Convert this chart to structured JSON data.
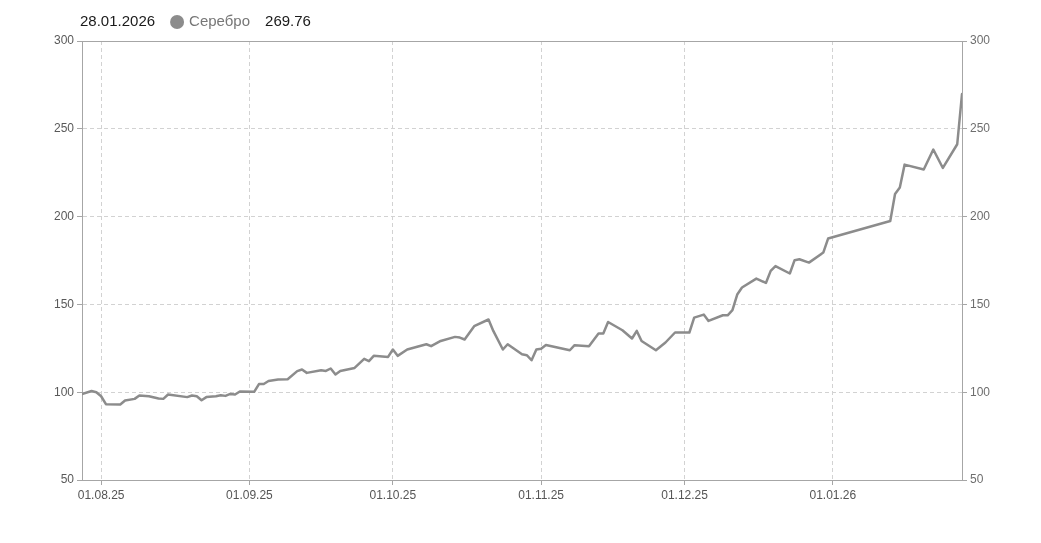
{
  "chart_data": {
    "type": "line",
    "annotations": [
      "28.01.2026",
      "269.76"
    ],
    "legend": "top left",
    "grid": true,
    "line_style": "solid",
    "x": [
      "2025-07-28",
      "2025-07-30",
      "2025-07-31",
      "2025-08-01",
      "2025-08-02",
      "2025-08-05",
      "2025-08-06",
      "2025-08-08",
      "2025-08-09",
      "2025-08-11",
      "2025-08-13",
      "2025-08-14",
      "2025-08-15",
      "2025-08-19",
      "2025-08-20",
      "2025-08-21",
      "2025-08-22",
      "2025-08-23",
      "2025-08-25",
      "2025-08-26",
      "2025-08-27",
      "2025-08-28",
      "2025-08-29",
      "2025-08-30",
      "2025-09-02",
      "2025-09-03",
      "2025-09-04",
      "2025-09-05",
      "2025-09-07",
      "2025-09-09",
      "2025-09-11",
      "2025-09-12",
      "2025-09-13",
      "2025-09-16",
      "2025-09-17",
      "2025-09-18",
      "2025-09-19",
      "2025-09-20",
      "2025-09-23",
      "2025-09-25",
      "2025-09-26",
      "2025-09-27",
      "2025-09-30",
      "2025-10-01",
      "2025-10-02",
      "2025-10-04",
      "2025-10-08",
      "2025-10-09",
      "2025-10-11",
      "2025-10-14",
      "2025-10-15",
      "2025-10-16",
      "2025-10-18",
      "2025-10-21",
      "2025-10-22",
      "2025-10-24",
      "2025-10-25",
      "2025-10-28",
      "2025-10-29",
      "2025-10-30",
      "2025-10-31",
      "2025-11-01",
      "2025-11-02",
      "2025-11-07",
      "2025-11-08",
      "2025-11-11",
      "2025-11-13",
      "2025-11-14",
      "2025-11-15",
      "2025-11-18",
      "2025-11-20",
      "2025-11-21",
      "2025-11-22",
      "2025-11-25",
      "2025-11-27",
      "2025-11-29",
      "2025-12-02",
      "2025-12-03",
      "2025-12-05",
      "2025-12-06",
      "2025-12-09",
      "2025-12-10",
      "2025-12-11",
      "2025-12-12",
      "2025-12-13",
      "2025-12-16",
      "2025-12-18",
      "2025-12-19",
      "2025-12-20",
      "2025-12-23",
      "2025-12-24",
      "2025-12-25",
      "2025-12-27",
      "2025-12-30",
      "2025-12-31",
      "2026-01-13",
      "2026-01-14",
      "2026-01-15",
      "2026-01-16",
      "2026-01-20",
      "2026-01-22",
      "2026-01-24",
      "2026-01-27",
      "2026-01-28"
    ],
    "series": [
      {
        "name": "Серебро",
        "color": "#8c8c8c",
        "values": [
          99.0,
          100.7,
          100.0,
          97.7,
          93.2,
          93.0,
          95.3,
          96.2,
          98.1,
          97.7,
          96.4,
          96.2,
          98.7,
          97.2,
          98.1,
          97.7,
          95.4,
          97.2,
          97.7,
          98.3,
          97.9,
          99.0,
          98.7,
          100.4,
          100.2,
          104.6,
          104.7,
          106.4,
          107.2,
          107.4,
          112.0,
          112.9,
          111.0,
          112.5,
          112.1,
          113.5,
          110.1,
          112.1,
          113.8,
          119.0,
          117.7,
          120.7,
          120.1,
          124.3,
          120.7,
          124.3,
          127.3,
          126.2,
          129.2,
          131.5,
          131.1,
          130.0,
          137.6,
          141.4,
          134.9,
          124.3,
          127.3,
          121.6,
          121.1,
          118.2,
          124.3,
          124.8,
          126.9,
          123.9,
          126.8,
          126.2,
          133.4,
          133.4,
          140.0,
          135.3,
          130.6,
          134.9,
          129.2,
          123.9,
          128.3,
          134.0,
          134.0,
          142.5,
          144.2,
          140.6,
          143.8,
          143.8,
          146.7,
          155.6,
          159.6,
          164.7,
          162.2,
          169.1,
          171.8,
          167.6,
          175.2,
          175.7,
          173.8,
          179.5,
          187.5,
          197.5,
          212.9,
          216.6,
          229.6,
          226.8,
          238.2,
          227.7,
          241.2,
          269.76
        ]
      }
    ],
    "xlim": [
      "2025-07-28",
      "2026-01-28"
    ],
    "xticks": [
      {
        "value": "2025-08-01",
        "label": "01.08.25"
      },
      {
        "value": "2025-09-01",
        "label": "01.09.25"
      },
      {
        "value": "2025-10-01",
        "label": "01.10.25"
      },
      {
        "value": "2025-11-01",
        "label": "01.11.25"
      },
      {
        "value": "2025-12-01",
        "label": "01.12.25"
      },
      {
        "value": "2026-01-01",
        "label": "01.01.26"
      }
    ],
    "ylim": [
      50,
      300
    ],
    "yticks": [
      50,
      100,
      150,
      200,
      250,
      300
    ],
    "y2lim": [
      50,
      300
    ],
    "y2ticks": [
      50,
      100,
      150,
      200,
      250,
      300
    ]
  }
}
